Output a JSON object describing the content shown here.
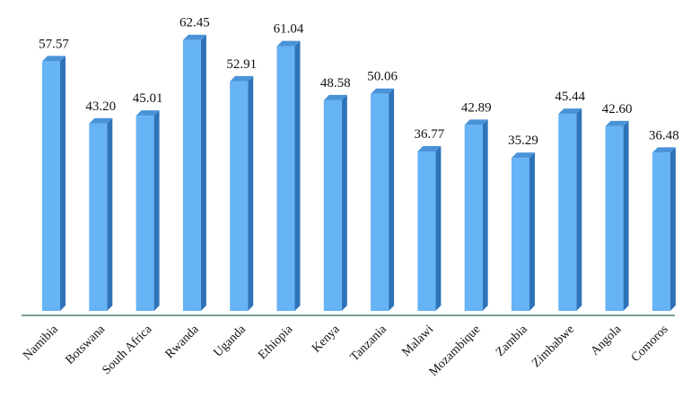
{
  "chart_data": {
    "type": "bar",
    "title": "",
    "xlabel": "",
    "ylabel": "",
    "ylim": [
      0,
      70
    ],
    "grid": false,
    "legend": "none",
    "style": "3d",
    "categories": [
      "Namibia",
      "Botswana",
      "South Africa",
      "Rwanda",
      "Uganda",
      "Ethiopia",
      "Kenya",
      "Tanzania",
      "Malawi",
      "Mozambique",
      "Zambia",
      "Zimbabwe",
      "Angola",
      "Comoros"
    ],
    "values": [
      57.57,
      43.2,
      45.01,
      62.45,
      52.91,
      61.04,
      48.58,
      50.06,
      36.77,
      42.89,
      35.29,
      45.44,
      42.6,
      36.48
    ],
    "labels": [
      "57.57",
      "43.20",
      "45.01",
      "62.45",
      "52.91",
      "61.04",
      "48.58",
      "50.06",
      "36.77",
      "42.89",
      "35.29",
      "45.44",
      "42.60",
      "36.48"
    ],
    "colors": {
      "bar_front": "#66b3f5",
      "bar_side": "#2e73b8",
      "bar_top": "#4a93d8",
      "baseline": "#7a9e96"
    }
  }
}
